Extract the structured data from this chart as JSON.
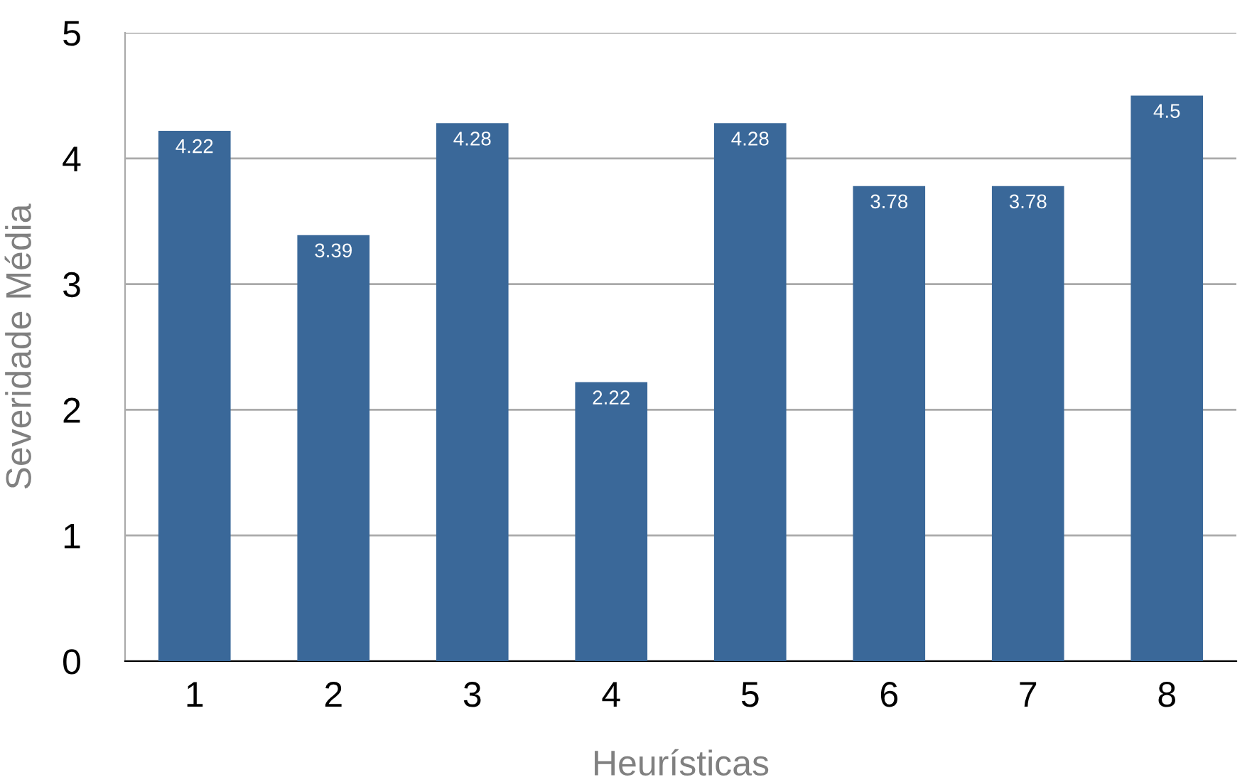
{
  "chart_data": {
    "type": "bar",
    "xlabel": "Heurísticas",
    "ylabel": "Severidade Média",
    "categories": [
      "1",
      "2",
      "3",
      "4",
      "5",
      "6",
      "7",
      "8"
    ],
    "values": [
      4.22,
      3.39,
      4.28,
      2.22,
      4.28,
      3.78,
      3.78,
      4.5
    ],
    "color": "#3a6899",
    "ylim": [
      0,
      5
    ],
    "yticks": [
      0,
      1,
      2,
      3,
      4,
      5
    ],
    "grid": "y",
    "data_labels": true
  }
}
